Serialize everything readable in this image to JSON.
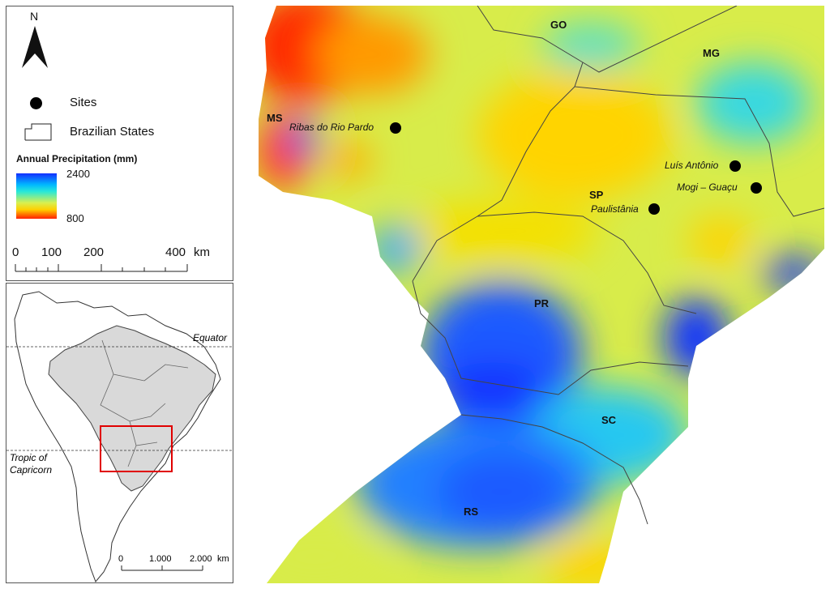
{
  "north_arrow": {
    "label": "N"
  },
  "legend": {
    "sites_label": "Sites",
    "states_label": "Brazilian States",
    "precip_title": "Annual Precipitation (mm)",
    "precip_max": "2400",
    "precip_min": "800",
    "colors": [
      "#1430ff",
      "#00b8ff",
      "#28e8d8",
      "#d8f050",
      "#ffd000",
      "#ff2000"
    ]
  },
  "scale_bar": {
    "ticks": [
      "0",
      "100",
      "200",
      "400"
    ],
    "unit": "km"
  },
  "inset": {
    "equator": "Equator",
    "tropic_line1": "Tropic of",
    "tropic_line2": "Capricorn",
    "scale_ticks": [
      "0",
      "1.000",
      "2.000"
    ],
    "scale_unit": "km"
  },
  "map": {
    "states": [
      "GO",
      "MG",
      "MS",
      "SP",
      "PR",
      "SC",
      "RS"
    ],
    "sites": [
      "Ribas do Rio Pardo",
      "Luís Antônio",
      "Mogi – Guaçu",
      "Paulistânia"
    ]
  }
}
